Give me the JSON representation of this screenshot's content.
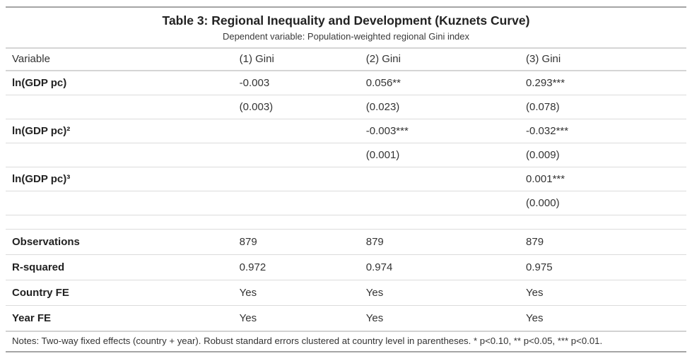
{
  "table": {
    "title": "Table 3: Regional Inequality and Development (Kuznets Curve)",
    "subtitle": "Dependent variable: Population-weighted regional Gini index",
    "columns": [
      "Variable",
      "(1) Gini",
      "(2) Gini",
      "(3) Gini"
    ],
    "rows": [
      {
        "label": "ln(GDP pc)",
        "values": [
          "-0.003",
          "0.056**",
          "0.293***"
        ]
      },
      {
        "label": "",
        "values": [
          "(0.003)",
          "(0.023)",
          "(0.078)"
        ]
      },
      {
        "label": "ln(GDP pc)²",
        "values": [
          "",
          "-0.003***",
          "-0.032***"
        ]
      },
      {
        "label": "",
        "values": [
          "",
          "(0.001)",
          "(0.009)"
        ]
      },
      {
        "label": "ln(GDP pc)³",
        "values": [
          "",
          "",
          "0.001***"
        ]
      },
      {
        "label": "",
        "values": [
          "",
          "",
          "(0.000)"
        ]
      },
      {
        "label": "",
        "values": [
          "",
          "",
          ""
        ]
      },
      {
        "label": "Observations",
        "values": [
          "879",
          "879",
          "879"
        ]
      },
      {
        "label": "R-squared",
        "values": [
          "0.972",
          "0.974",
          "0.975"
        ]
      },
      {
        "label": "Country FE",
        "values": [
          "Yes",
          "Yes",
          "Yes"
        ]
      },
      {
        "label": "Year FE",
        "values": [
          "Yes",
          "Yes",
          "Yes"
        ]
      }
    ],
    "notes": "Notes: Two-way fixed effects (country + year). Robust standard errors clustered at country level in parentheses. * p<0.10, ** p<0.05, *** p<0.01."
  },
  "colors": {
    "border-outer": "#a5a5a5",
    "border-header": "#d5d5d5",
    "border-row": "#dcdcdc",
    "border-notes": "#d2d2d2",
    "text-main": "#333333",
    "text-bold": "#222222"
  }
}
